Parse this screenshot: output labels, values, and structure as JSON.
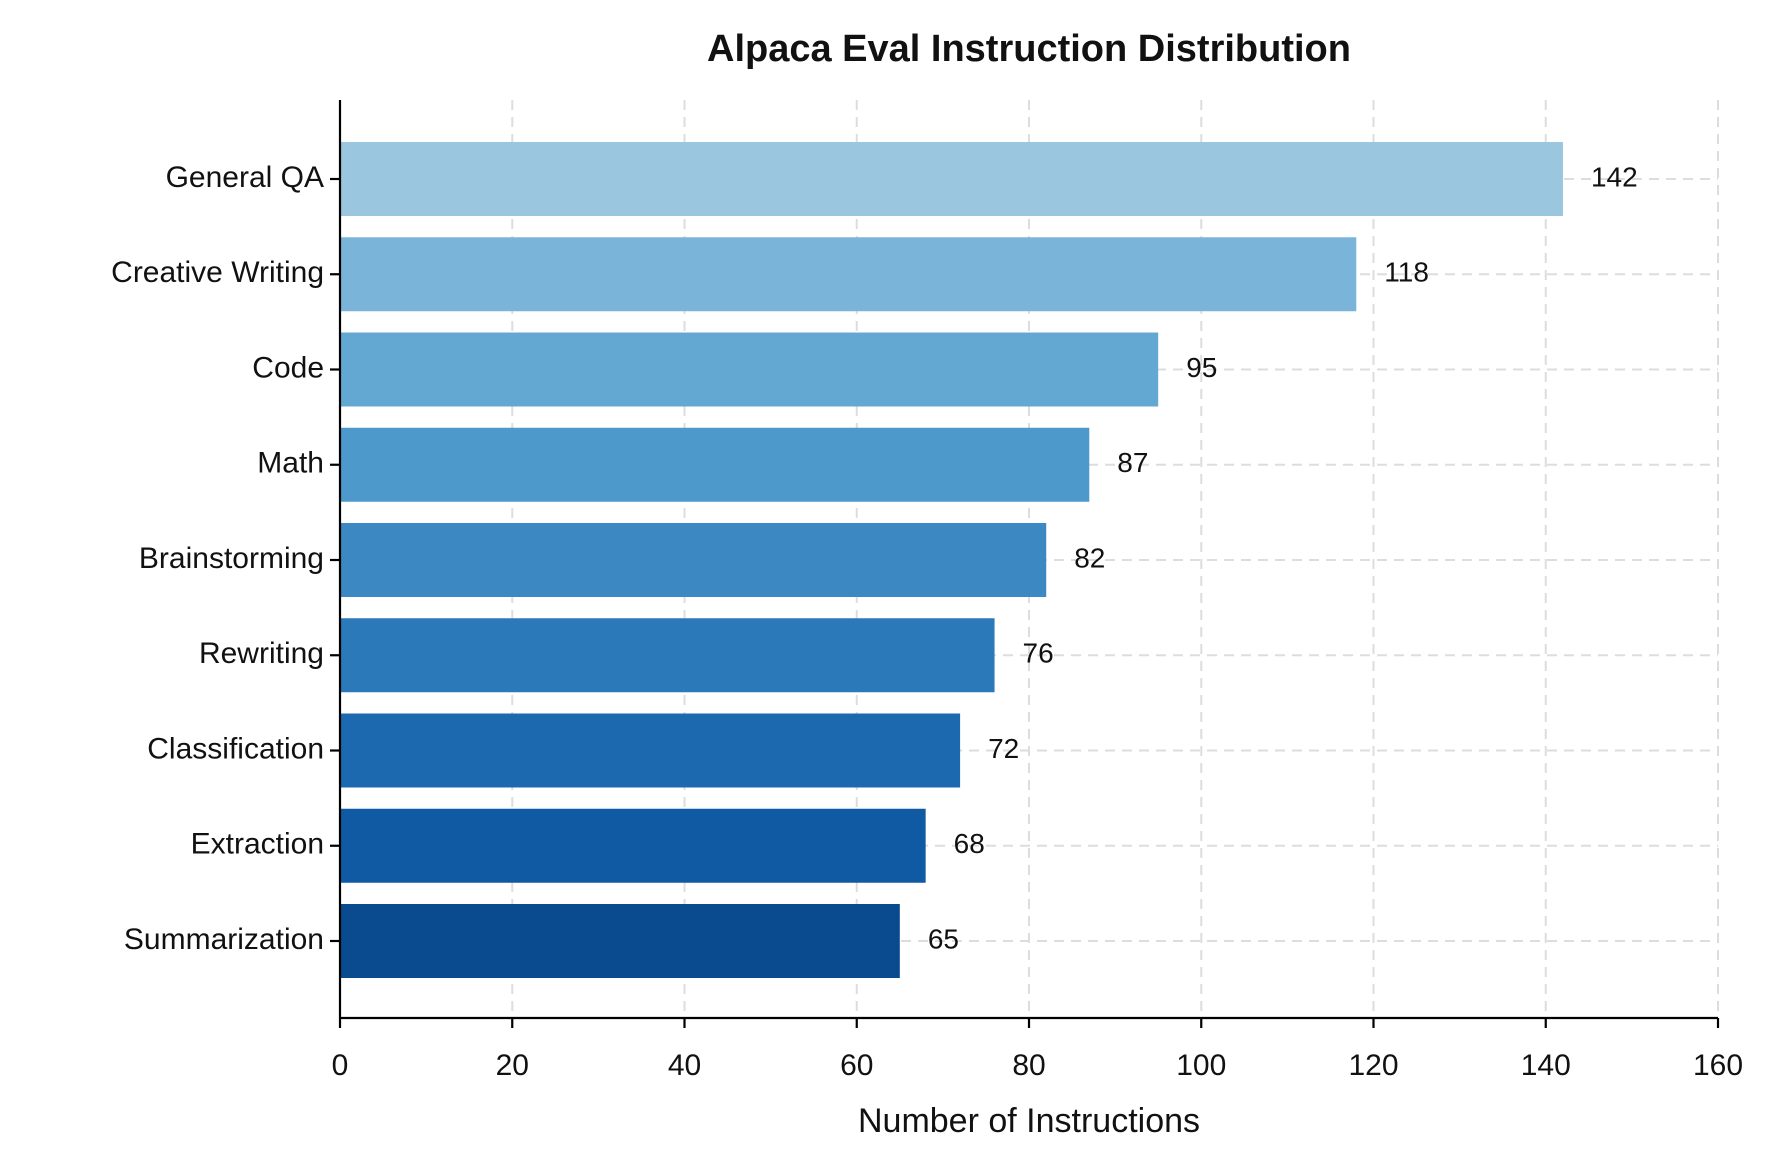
{
  "chart_data": {
    "type": "barh",
    "title": "Alpaca Eval Instruction Distribution",
    "xlabel": "Number of Instructions",
    "categories": [
      "General QA",
      "Creative Writing",
      "Code",
      "Math",
      "Brainstorming",
      "Rewriting",
      "Classification",
      "Extraction",
      "Summarization"
    ],
    "values": [
      142,
      118,
      95,
      87,
      82,
      76,
      72,
      68,
      65
    ],
    "colors": [
      "#9ac6e0",
      "#7ab5d9",
      "#63a8d3",
      "#4d99cb",
      "#3b88c2",
      "#2b79b9",
      "#1d69b0",
      "#1059a3",
      "#0a4a8e"
    ],
    "xlim": [
      0,
      160
    ],
    "xticks": [
      0,
      20,
      40,
      60,
      80,
      100,
      120,
      140,
      160
    ],
    "grid": true
  }
}
